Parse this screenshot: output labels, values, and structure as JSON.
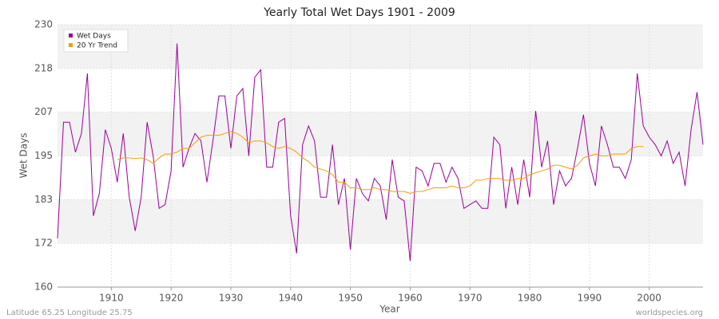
{
  "chart_data": {
    "type": "line",
    "title": "Yearly Total Wet Days 1901 - 2009",
    "x_label": "Year",
    "y_label": "Wet Days",
    "source_left": "Latitude 65.25 Longitude 25.75",
    "source_right": "worldspecies.org",
    "x": [
      1901,
      1902,
      1903,
      1904,
      1905,
      1906,
      1907,
      1908,
      1909,
      1910,
      1911,
      1912,
      1913,
      1914,
      1915,
      1916,
      1917,
      1918,
      1919,
      1920,
      1921,
      1922,
      1923,
      1924,
      1925,
      1926,
      1927,
      1928,
      1929,
      1930,
      1931,
      1932,
      1933,
      1934,
      1935,
      1936,
      1937,
      1938,
      1939,
      1940,
      1941,
      1942,
      1943,
      1944,
      1945,
      1946,
      1947,
      1948,
      1949,
      1950,
      1951,
      1952,
      1953,
      1954,
      1955,
      1956,
      1957,
      1958,
      1959,
      1960,
      1961,
      1962,
      1963,
      1964,
      1965,
      1966,
      1967,
      1968,
      1969,
      1970,
      1971,
      1972,
      1973,
      1974,
      1975,
      1976,
      1977,
      1978,
      1979,
      1980,
      1981,
      1982,
      1983,
      1984,
      1985,
      1986,
      1987,
      1988,
      1989,
      1990,
      1991,
      1992,
      1993,
      1994,
      1995,
      1996,
      1997,
      1998,
      1999,
      2000,
      2001,
      2002,
      2003,
      2004,
      2005,
      2006,
      2007,
      2008,
      2009
    ],
    "series": [
      {
        "name": "Wet Days",
        "color": "#990099",
        "values": [
          173,
          204,
          204,
          196,
          201,
          217,
          179,
          185,
          202,
          197,
          188,
          201,
          184,
          175,
          184,
          204,
          195,
          181,
          182,
          191,
          225,
          192,
          197,
          201,
          199,
          188,
          199,
          211,
          211,
          197,
          211,
          213,
          195,
          216,
          218,
          192,
          192,
          204,
          205,
          179,
          169,
          198,
          203,
          199,
          184,
          184,
          198,
          182,
          189,
          170,
          189,
          185,
          183,
          189,
          187,
          178,
          194,
          184,
          183,
          167,
          192,
          191,
          187,
          193,
          193,
          188,
          192,
          189,
          181,
          182,
          183,
          181,
          181,
          200,
          198,
          181,
          192,
          182,
          194,
          184,
          207,
          192,
          199,
          182,
          191,
          187,
          189,
          197,
          206,
          193,
          187,
          203,
          198,
          192,
          192,
          189,
          194,
          217,
          203,
          200,
          198,
          195,
          199,
          193,
          196,
          187,
          202,
          212,
          198
        ]
      },
      {
        "name": "20 Yr Trend",
        "color": "#ff9900",
        "values": [
          null,
          null,
          null,
          null,
          null,
          null,
          null,
          null,
          null,
          null,
          194,
          194.5,
          194.5,
          194.3,
          194.5,
          194,
          193,
          194.5,
          195.5,
          195.5,
          196,
          197,
          197,
          198.5,
          200,
          200.5,
          200.5,
          200.5,
          201,
          201.5,
          201,
          200,
          198.5,
          199,
          199,
          198.5,
          197.5,
          197,
          197.5,
          197,
          196,
          194.5,
          193.5,
          192,
          191.5,
          191,
          190,
          188,
          188,
          186.5,
          186.5,
          186,
          186,
          186.5,
          186,
          186,
          185.5,
          185.5,
          185.5,
          185,
          185.5,
          185.5,
          186,
          186.5,
          186.5,
          186.5,
          187,
          186.5,
          186.5,
          187,
          188.5,
          188.5,
          189,
          189,
          189,
          188.5,
          188.5,
          189,
          189,
          190,
          190.5,
          191,
          191.5,
          192.5,
          192.5,
          192,
          191.5,
          192.5,
          194.5,
          195,
          195.5,
          195,
          195,
          195.5,
          195.5,
          195.5,
          197,
          197.5,
          197.5,
          null,
          null,
          null,
          null,
          null,
          null,
          null,
          null,
          null,
          null
        ]
      }
    ],
    "xlim": [
      1901,
      2009
    ],
    "xticks": [
      1910,
      1920,
      1930,
      1940,
      1950,
      1960,
      1970,
      1980,
      1990,
      2000
    ],
    "ylim": [
      160,
      230
    ],
    "yticks": [
      160,
      {
        "value": 171.67,
        "label": "172"
      },
      {
        "value": 183.33,
        "label": "183"
      },
      195,
      {
        "value": 206.67,
        "label": "207"
      },
      {
        "value": 218.33,
        "label": "218"
      },
      230
    ],
    "grid": true,
    "legend": "top-left"
  }
}
